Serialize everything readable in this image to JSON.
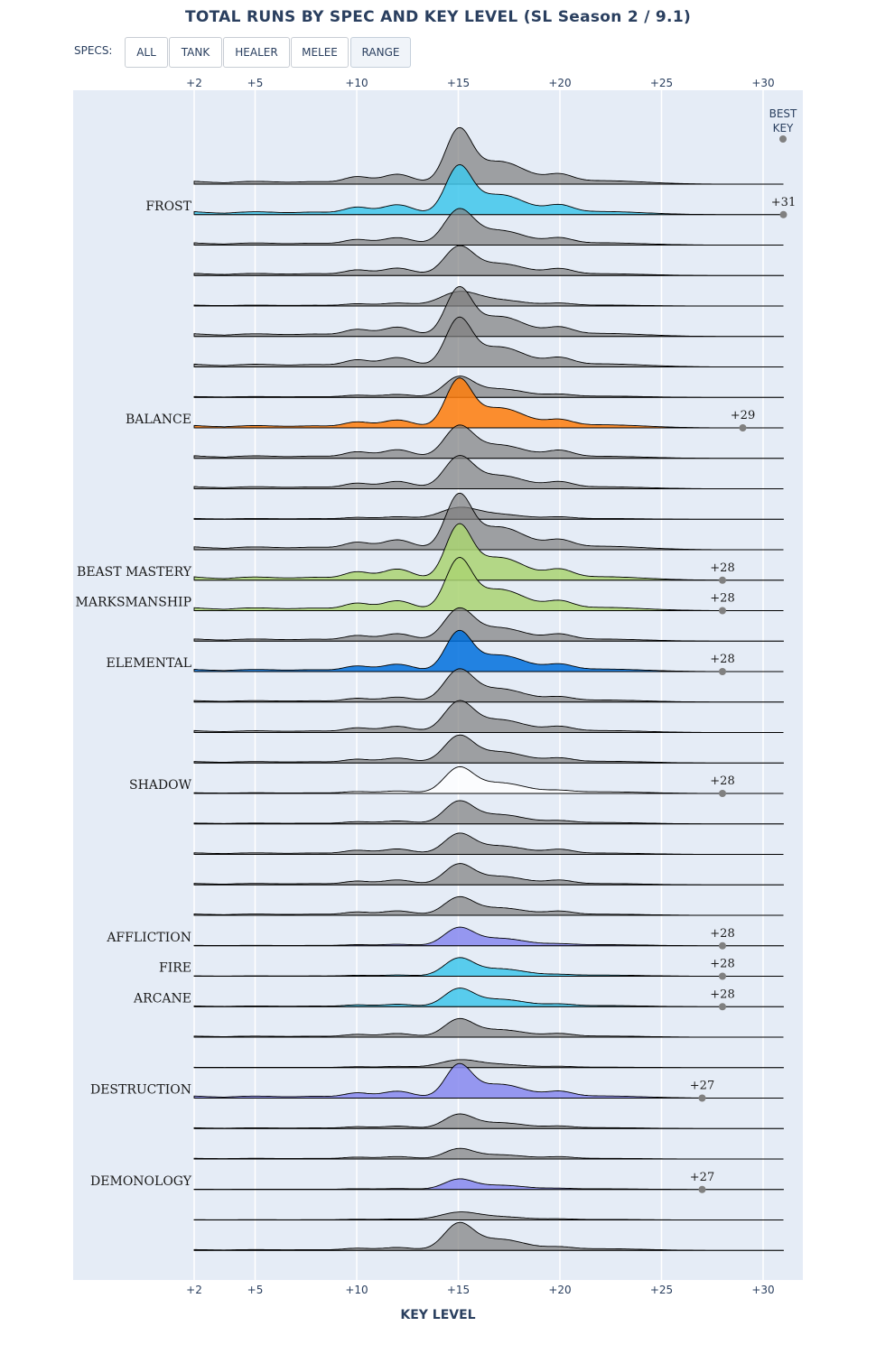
{
  "title": "TOTAL RUNS BY SPEC AND KEY LEVEL (SL Season 2 / 9.1)",
  "controls": {
    "specs_label": "SPECS:",
    "buttons": [
      "ALL",
      "TANK",
      "HEALER",
      "MELEE",
      "RANGE"
    ],
    "active": "RANGE"
  },
  "chart_data": {
    "type": "ridgeline",
    "title": "TOTAL RUNS BY SPEC AND KEY LEVEL (SL Season 2 / 9.1)",
    "xlabel": "KEY LEVEL",
    "ylabel": "",
    "x_ticks": [
      "+2",
      "+5",
      "+10",
      "+15",
      "+20",
      "+25",
      "+30"
    ],
    "x_tick_values": [
      2,
      5,
      10,
      15,
      20,
      25,
      30
    ],
    "xlim": [
      2,
      31
    ],
    "best_key_header": [
      "BEST",
      "KEY"
    ],
    "legend": "none",
    "grid": true,
    "colors": {
      "background": "#e5ecf6",
      "gray_fill": "#7f7f7f",
      "frost": "#3fc7eb",
      "balance": "#ff7c0a",
      "hunter": "#aad372",
      "shaman": "#0070dd",
      "shadow": "#ffffff",
      "warlock": "#8788ee",
      "mage": "#3fc7eb"
    },
    "rows": [
      {
        "label": "",
        "color": "#7f7f7f",
        "peak": 0.85,
        "base": 0.4,
        "shape": "tall",
        "best": null
      },
      {
        "label": "FROST",
        "color": "#3fc7eb",
        "peak": 0.75,
        "base": 0.4,
        "shape": "tall",
        "best": "+31"
      },
      {
        "label": "",
        "color": "#7f7f7f",
        "peak": 0.55,
        "base": 0.3,
        "shape": "normal",
        "best": null
      },
      {
        "label": "",
        "color": "#7f7f7f",
        "peak": 0.45,
        "base": 0.3,
        "shape": "normal",
        "best": null
      },
      {
        "label": "",
        "color": "#7f7f7f",
        "peak": 0.22,
        "base": 0.12,
        "shape": "flat",
        "best": null
      },
      {
        "label": "",
        "color": "#7f7f7f",
        "peak": 0.75,
        "base": 0.38,
        "shape": "tall",
        "best": null
      },
      {
        "label": "",
        "color": "#7f7f7f",
        "peak": 0.75,
        "base": 0.38,
        "shape": "tall",
        "best": null
      },
      {
        "label": "",
        "color": "#7f7f7f",
        "peak": 0.32,
        "base": 0.12,
        "shape": "normal",
        "best": null
      },
      {
        "label": "BALANCE",
        "color": "#ff7c0a",
        "peak": 0.75,
        "base": 0.32,
        "shape": "tall",
        "best": "+29"
      },
      {
        "label": "",
        "color": "#7f7f7f",
        "peak": 0.5,
        "base": 0.35,
        "shape": "normal",
        "best": null
      },
      {
        "label": "",
        "color": "#7f7f7f",
        "peak": 0.5,
        "base": 0.3,
        "shape": "normal",
        "best": null
      },
      {
        "label": "",
        "color": "#7f7f7f",
        "peak": 0.18,
        "base": 0.1,
        "shape": "flat",
        "best": null
      },
      {
        "label": "",
        "color": "#7f7f7f",
        "peak": 0.85,
        "base": 0.4,
        "shape": "tall",
        "best": null
      },
      {
        "label": "BEAST MASTERY",
        "color": "#aad372",
        "peak": 0.85,
        "base": 0.45,
        "shape": "tall",
        "best": "+28"
      },
      {
        "label": "MARKSMANSHIP",
        "color": "#aad372",
        "peak": 0.8,
        "base": 0.4,
        "shape": "tall",
        "best": "+28"
      },
      {
        "label": "",
        "color": "#7f7f7f",
        "peak": 0.5,
        "base": 0.3,
        "shape": "normal",
        "best": null
      },
      {
        "label": "ELEMENTAL",
        "color": "#0070dd",
        "peak": 0.62,
        "base": 0.3,
        "shape": "tall",
        "best": "+28"
      },
      {
        "label": "",
        "color": "#7f7f7f",
        "peak": 0.5,
        "base": 0.2,
        "shape": "normal",
        "best": null
      },
      {
        "label": "",
        "color": "#7f7f7f",
        "peak": 0.48,
        "base": 0.25,
        "shape": "normal",
        "best": null
      },
      {
        "label": "",
        "color": "#7f7f7f",
        "peak": 0.42,
        "base": 0.2,
        "shape": "normal",
        "best": null
      },
      {
        "label": "SHADOW",
        "color": "#ffffff",
        "peak": 0.4,
        "base": 0.1,
        "shape": "normal",
        "best": "+28"
      },
      {
        "label": "",
        "color": "#7f7f7f",
        "peak": 0.35,
        "base": 0.12,
        "shape": "normal",
        "best": null
      },
      {
        "label": "",
        "color": "#7f7f7f",
        "peak": 0.32,
        "base": 0.22,
        "shape": "normal",
        "best": null
      },
      {
        "label": "",
        "color": "#7f7f7f",
        "peak": 0.32,
        "base": 0.2,
        "shape": "normal",
        "best": null
      },
      {
        "label": "",
        "color": "#7f7f7f",
        "peak": 0.28,
        "base": 0.18,
        "shape": "normal",
        "best": null
      },
      {
        "label": "AFFLICTION",
        "color": "#8788ee",
        "peak": 0.28,
        "base": 0.06,
        "shape": "normal",
        "best": "+28"
      },
      {
        "label": "FIRE",
        "color": "#3fc7eb",
        "peak": 0.28,
        "base": 0.05,
        "shape": "normal",
        "best": "+28"
      },
      {
        "label": "ARCANE",
        "color": "#3fc7eb",
        "peak": 0.28,
        "base": 0.1,
        "shape": "normal",
        "best": "+28"
      },
      {
        "label": "",
        "color": "#7f7f7f",
        "peak": 0.28,
        "base": 0.15,
        "shape": "normal",
        "best": null
      },
      {
        "label": "",
        "color": "#7f7f7f",
        "peak": 0.12,
        "base": 0.05,
        "shape": "flat",
        "best": null
      },
      {
        "label": "DESTRUCTION",
        "color": "#8788ee",
        "peak": 0.52,
        "base": 0.28,
        "shape": "tall",
        "best": "+27"
      },
      {
        "label": "",
        "color": "#7f7f7f",
        "peak": 0.22,
        "base": 0.1,
        "shape": "normal",
        "best": null
      },
      {
        "label": "",
        "color": "#7f7f7f",
        "peak": 0.16,
        "base": 0.1,
        "shape": "normal",
        "best": null
      },
      {
        "label": "DEMONOLOGY",
        "color": "#8788ee",
        "peak": 0.16,
        "base": 0.04,
        "shape": "normal",
        "best": "+27"
      },
      {
        "label": "",
        "color": "#7f7f7f",
        "peak": 0.12,
        "base": 0.04,
        "shape": "flat",
        "best": null
      },
      {
        "label": "",
        "color": "#7f7f7f",
        "peak": 0.42,
        "base": 0.12,
        "shape": "normal",
        "best": null
      }
    ]
  }
}
